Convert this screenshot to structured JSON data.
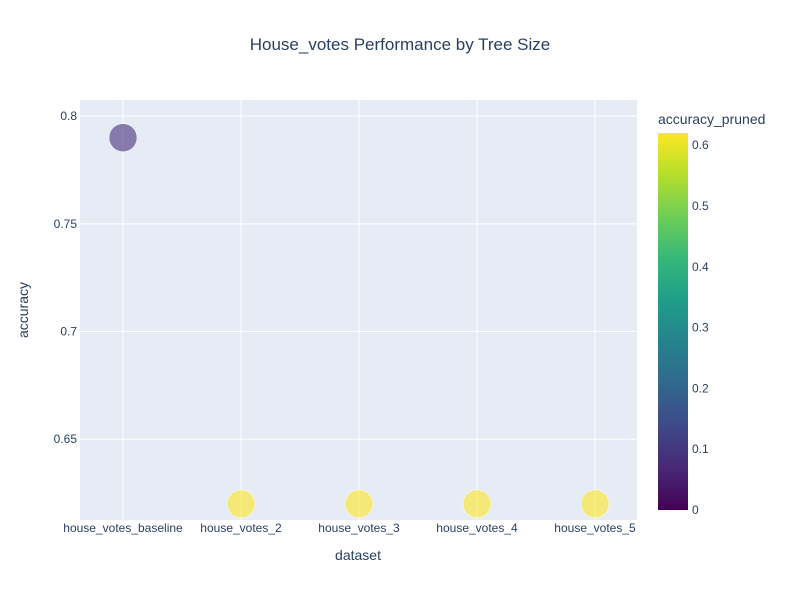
{
  "chart_data": {
    "type": "scatter",
    "title": "House_votes Performance by Tree Size",
    "xlabel": "dataset",
    "ylabel": "accuracy",
    "categories": [
      "house_votes_baseline",
      "house_votes_2",
      "house_votes_3",
      "house_votes_4",
      "house_votes_5"
    ],
    "y": [
      0.79,
      0.62,
      0.62,
      0.62,
      0.62
    ],
    "color_values": [
      0.08,
      0.62,
      0.62,
      0.62,
      0.62
    ],
    "ylim": [
      0.6125,
      0.8075
    ],
    "yticks": [
      0.65,
      0.7,
      0.75,
      0.8
    ],
    "ytick_labels": [
      "0.65",
      "0.7",
      "0.75",
      "0.8"
    ],
    "colorbar": {
      "title": "accuracy_pruned",
      "range": [
        0,
        0.62
      ],
      "ticks": [
        0,
        0.1,
        0.2,
        0.3,
        0.4,
        0.5,
        0.6
      ],
      "tick_labels": [
        "0",
        "0.1",
        "0.2",
        "0.3",
        "0.4",
        "0.5",
        "0.6"
      ],
      "colorscale": "Viridis"
    },
    "grid": true,
    "plot_bgcolor": "#e5ecf6",
    "marker_opacity": 0.6
  }
}
